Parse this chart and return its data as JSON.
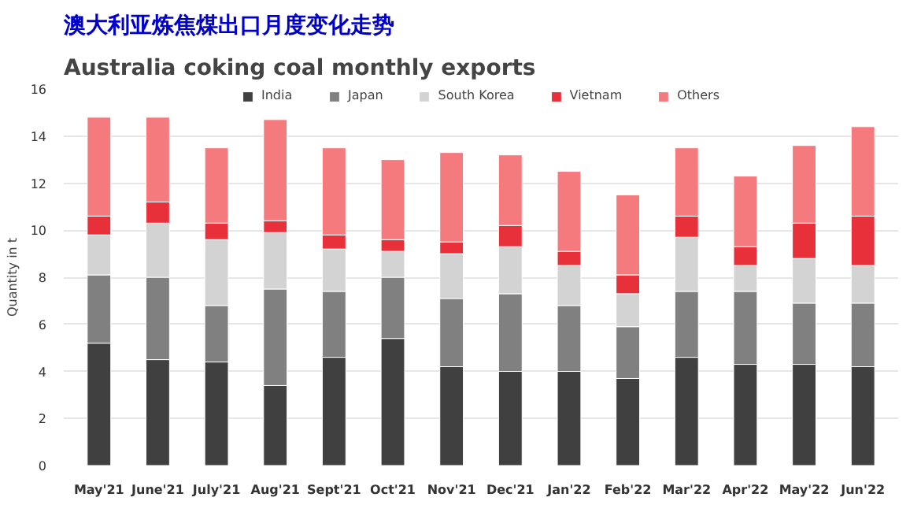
{
  "chart_data": {
    "type": "bar",
    "title": "澳大利亚炼焦煤出口月度变化走势",
    "subtitle": "Australia coking coal monthly exports",
    "ylabel": "Quantity in t",
    "stacked": true,
    "categories": [
      "May'21",
      "June'21",
      "July'21",
      "Aug'21",
      "Sept'21",
      "Oct'21",
      "Nov'21",
      "Dec'21",
      "Jan'22",
      "Feb'22",
      "Mar'22",
      "Apr'22",
      "May'22",
      "Jun'22"
    ],
    "series": [
      {
        "name": "India",
        "color": "#404040",
        "values": [
          5.2,
          4.5,
          4.4,
          3.4,
          4.6,
          5.4,
          4.2,
          4.0,
          4.0,
          3.7,
          4.6,
          4.3,
          4.3,
          4.2
        ]
      },
      {
        "name": "Japan",
        "color": "#808080",
        "values": [
          2.9,
          3.5,
          2.4,
          4.1,
          2.8,
          2.6,
          2.9,
          3.3,
          2.8,
          2.2,
          2.8,
          3.1,
          2.6,
          2.7
        ]
      },
      {
        "name": "South Korea",
        "color": "#d3d3d3",
        "values": [
          1.7,
          2.3,
          2.8,
          2.4,
          1.8,
          1.1,
          1.9,
          2.0,
          1.7,
          1.4,
          2.3,
          1.1,
          1.9,
          1.6
        ]
      },
      {
        "name": "Vietnam",
        "color": "#e8303a",
        "values": [
          0.8,
          0.9,
          0.7,
          0.5,
          0.6,
          0.5,
          0.5,
          0.9,
          0.6,
          0.8,
          0.9,
          0.8,
          1.5,
          2.1
        ]
      },
      {
        "name": "Others",
        "color": "#f47a7e",
        "values": [
          4.2,
          3.6,
          3.2,
          4.3,
          3.7,
          3.4,
          3.8,
          3.0,
          3.4,
          3.4,
          2.9,
          3.0,
          3.3,
          3.8
        ]
      }
    ],
    "ylim": [
      0,
      16
    ],
    "yticks": [
      0,
      2,
      4,
      6,
      8,
      10,
      12,
      14,
      16
    ],
    "grid": "y",
    "legend": "top"
  }
}
